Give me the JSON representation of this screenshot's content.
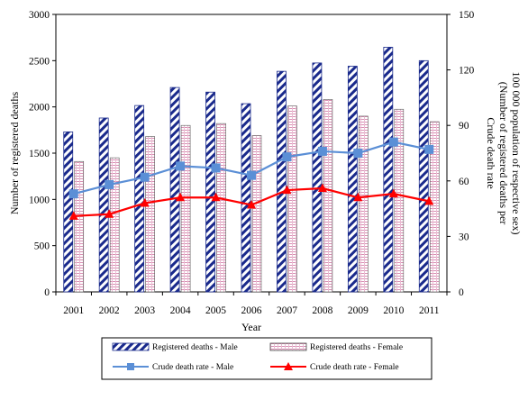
{
  "chart_data": {
    "type": "bar",
    "categories": [
      "2001",
      "2002",
      "2003",
      "2004",
      "2005",
      "2006",
      "2007",
      "2008",
      "2009",
      "2010",
      "2011"
    ],
    "xlabel": "Year",
    "ylabel": "Number of registered deaths",
    "y2label_lines": [
      "Crude death rate",
      "(Number of registered deaths per",
      "100 000 population of respective sex)"
    ],
    "ylim": [
      0,
      3000
    ],
    "y2lim": [
      0,
      150
    ],
    "yticks": [
      0,
      500,
      1000,
      1500,
      2000,
      2500,
      3000
    ],
    "y2ticks": [
      0,
      30,
      60,
      90,
      120,
      150
    ],
    "grid": false,
    "legend_position": "bottom",
    "series": [
      {
        "name": "Registered deaths - Male",
        "kind": "bar",
        "axis": "left",
        "pattern": "diagonal-hatch",
        "color": "#1a2a8c",
        "values": [
          1730,
          1880,
          2015,
          2210,
          2160,
          2035,
          2385,
          2475,
          2440,
          2645,
          2500
        ]
      },
      {
        "name": "Registered deaths - Female",
        "kind": "bar",
        "axis": "left",
        "pattern": "horizontal-lines",
        "color": "#d98fb3",
        "values": [
          1410,
          1450,
          1680,
          1800,
          1820,
          1690,
          2010,
          2080,
          1900,
          1975,
          1840
        ]
      },
      {
        "name": "Crude death rate - Male",
        "kind": "line",
        "axis": "right",
        "marker": "square",
        "color": "#5b8fd6",
        "values": [
          53,
          58,
          62,
          68,
          67,
          63,
          73,
          76,
          75,
          81,
          77
        ]
      },
      {
        "name": "Crude death rate - Female",
        "kind": "line",
        "axis": "right",
        "marker": "triangle",
        "color": "#ff0000",
        "values": [
          41,
          42,
          48,
          51,
          51,
          47,
          55,
          56,
          51,
          53,
          49
        ]
      }
    ]
  }
}
